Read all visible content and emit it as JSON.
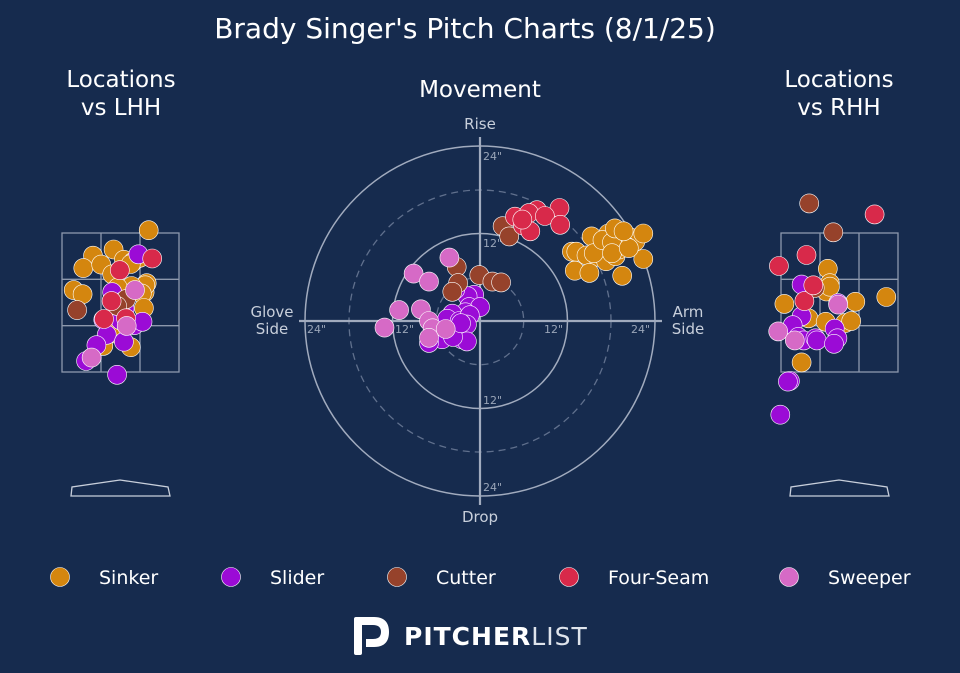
{
  "title": "Brady Singer's Pitch Charts (8/1/25)",
  "panels": {
    "lhh": {
      "title_line1": "Locations",
      "title_line2": "vs LHH"
    },
    "movement": {
      "title": "Movement",
      "rise": "Rise",
      "drop": "Drop",
      "glove_line1": "Glove",
      "glove_line2": "Side",
      "arm_line1": "Arm",
      "arm_line2": "Side",
      "ring_labels": [
        "24\"",
        "12\""
      ]
    },
    "rhh": {
      "title_line1": "Locations",
      "title_line2": "vs RHH"
    }
  },
  "brand": {
    "bold": "PITCHER",
    "light": "LIST"
  },
  "colors": {
    "Sinker": "#d4860f",
    "Slider": "#9b0bd6",
    "Cutter": "#96422b",
    "Four-Seam": "#d8294a",
    "Sweeper": "#d66ac6"
  },
  "chart_data": [
    {
      "type": "scatter",
      "name": "locations_lhh",
      "title": "Locations vs LHH",
      "legend": [
        "Sinker",
        "Slider",
        "Cutter",
        "Four-Seam",
        "Sweeper"
      ],
      "points": [
        {
          "pitch": "Sinker",
          "x": 4.1,
          "y": 10.5
        },
        {
          "pitch": "Sinker",
          "x": -1.0,
          "y": 7.7
        },
        {
          "pitch": "Sinker",
          "x": -4.0,
          "y": 6.8
        },
        {
          "pitch": "Sinker",
          "x": -5.4,
          "y": 5.0
        },
        {
          "pitch": "Sinker",
          "x": -2.8,
          "y": 5.5
        },
        {
          "pitch": "Sinker",
          "x": 0.5,
          "y": 6.2
        },
        {
          "pitch": "Sinker",
          "x": 1.8,
          "y": 5.9
        },
        {
          "pitch": "Sinker",
          "x": 2.8,
          "y": 6.5
        },
        {
          "pitch": "Sinker",
          "x": 1.5,
          "y": 5.6
        },
        {
          "pitch": "Sinker",
          "x": -1.2,
          "y": 4.1
        },
        {
          "pitch": "Sinker",
          "x": 3.5,
          "y": 1.5
        },
        {
          "pitch": "Sinker",
          "x": 3.8,
          "y": 2.8
        },
        {
          "pitch": "Sinker",
          "x": 3.6,
          "y": 2.5
        },
        {
          "pitch": "Sinker",
          "x": 1.6,
          "y": 2.4
        },
        {
          "pitch": "Sinker",
          "x": -6.8,
          "y": 1.8
        },
        {
          "pitch": "Sinker",
          "x": -5.5,
          "y": 1.2
        },
        {
          "pitch": "Sinker",
          "x": -0.4,
          "y": 2.2
        },
        {
          "pitch": "Sinker",
          "x": 3.1,
          "y": 1.3
        },
        {
          "pitch": "Sinker",
          "x": 3.4,
          "y": -0.8
        },
        {
          "pitch": "Sinker",
          "x": 0.4,
          "y": -2.0
        },
        {
          "pitch": "Sinker",
          "x": -0.8,
          "y": -4.5
        },
        {
          "pitch": "Sinker",
          "x": -2.5,
          "y": -6.3
        },
        {
          "pitch": "Sinker",
          "x": 1.5,
          "y": -6.5
        },
        {
          "pitch": "Slider",
          "x": 2.6,
          "y": 7.0
        },
        {
          "pitch": "Slider",
          "x": -1.2,
          "y": 1.5
        },
        {
          "pitch": "Slider",
          "x": -0.3,
          "y": -0.2
        },
        {
          "pitch": "Slider",
          "x": 0.6,
          "y": -0.9
        },
        {
          "pitch": "Slider",
          "x": -0.3,
          "y": -1.3
        },
        {
          "pitch": "Slider",
          "x": -2.5,
          "y": -2.5
        },
        {
          "pitch": "Slider",
          "x": 0.0,
          "y": -2.6
        },
        {
          "pitch": "Slider",
          "x": 2.0,
          "y": -3.3
        },
        {
          "pitch": "Slider",
          "x": 3.2,
          "y": -2.8
        },
        {
          "pitch": "Slider",
          "x": -2.0,
          "y": -4.7
        },
        {
          "pitch": "Slider",
          "x": -3.5,
          "y": -6.2
        },
        {
          "pitch": "Slider",
          "x": 0.5,
          "y": -5.7
        },
        {
          "pitch": "Slider",
          "x": -5.0,
          "y": -8.5
        },
        {
          "pitch": "Slider",
          "x": -0.5,
          "y": -10.5
        },
        {
          "pitch": "Cutter",
          "x": -6.3,
          "y": -1.1
        },
        {
          "pitch": "Cutter",
          "x": 0.4,
          "y": 0.2
        },
        {
          "pitch": "Cutter",
          "x": 0.8,
          "y": 0.5
        },
        {
          "pitch": "Cutter",
          "x": -0.5,
          "y": -0.5
        },
        {
          "pitch": "Four-Seam",
          "x": -0.1,
          "y": 4.7
        },
        {
          "pitch": "Four-Seam",
          "x": 4.6,
          "y": 6.4
        },
        {
          "pitch": "Four-Seam",
          "x": -1.3,
          "y": 0.2
        },
        {
          "pitch": "Four-Seam",
          "x": 0.8,
          "y": -2.3
        },
        {
          "pitch": "Four-Seam",
          "x": -2.4,
          "y": -2.4
        },
        {
          "pitch": "Sweeper",
          "x": 2.1,
          "y": 1.8
        },
        {
          "pitch": "Sweeper",
          "x": 0.9,
          "y": -3.4
        },
        {
          "pitch": "Sweeper",
          "x": -4.2,
          "y": -8.0
        }
      ]
    },
    {
      "type": "scatter",
      "name": "movement",
      "title": "Movement",
      "xlabel_left": "Glove Side",
      "xlabel_right": "Arm Side",
      "ylabel_top": "Rise",
      "ylabel_bottom": "Drop",
      "xlim": [
        -24,
        24
      ],
      "ylim": [
        -24,
        24
      ],
      "rings": [
        6,
        12,
        18,
        24
      ],
      "points": [
        {
          "pitch": "Sinker",
          "x": 12.6,
          "y": 9.5
        },
        {
          "pitch": "Sinker",
          "x": 13.2,
          "y": 9.5
        },
        {
          "pitch": "Sinker",
          "x": 14.6,
          "y": 9.0
        },
        {
          "pitch": "Sinker",
          "x": 16.1,
          "y": 8.8
        },
        {
          "pitch": "Sinker",
          "x": 17.3,
          "y": 8.2
        },
        {
          "pitch": "Sinker",
          "x": 18.6,
          "y": 8.9
        },
        {
          "pitch": "Sinker",
          "x": 19.4,
          "y": 11.0
        },
        {
          "pitch": "Sinker",
          "x": 20.5,
          "y": 11.5
        },
        {
          "pitch": "Sinker",
          "x": 21.3,
          "y": 10.9
        },
        {
          "pitch": "Sinker",
          "x": 22.4,
          "y": 12.0
        },
        {
          "pitch": "Sinker",
          "x": 17.6,
          "y": 12.0
        },
        {
          "pitch": "Sinker",
          "x": 15.3,
          "y": 11.6
        },
        {
          "pitch": "Sinker",
          "x": 15.6,
          "y": 9.3
        },
        {
          "pitch": "Sinker",
          "x": 19.1,
          "y": 9.8
        },
        {
          "pitch": "Sinker",
          "x": 22.4,
          "y": 8.5
        },
        {
          "pitch": "Sinker",
          "x": 20.1,
          "y": 10.2
        },
        {
          "pitch": "Sinker",
          "x": 16.8,
          "y": 11.1
        },
        {
          "pitch": "Sinker",
          "x": 18.1,
          "y": 10.8
        },
        {
          "pitch": "Sinker",
          "x": 18.1,
          "y": 9.3
        },
        {
          "pitch": "Sinker",
          "x": 20.4,
          "y": 10.0
        },
        {
          "pitch": "Sinker",
          "x": 13.0,
          "y": 6.9
        },
        {
          "pitch": "Sinker",
          "x": 15.0,
          "y": 6.6
        },
        {
          "pitch": "Sinker",
          "x": 19.5,
          "y": 6.2
        },
        {
          "pitch": "Sinker",
          "x": 18.5,
          "y": 12.7
        },
        {
          "pitch": "Sinker",
          "x": 19.7,
          "y": 12.3
        },
        {
          "pitch": "Slider",
          "x": -0.8,
          "y": 3.6
        },
        {
          "pitch": "Slider",
          "x": -1.7,
          "y": 3.4
        },
        {
          "pitch": "Slider",
          "x": -3.4,
          "y": 4.3
        },
        {
          "pitch": "Slider",
          "x": -1.5,
          "y": 1.9
        },
        {
          "pitch": "Slider",
          "x": 0.0,
          "y": 1.9
        },
        {
          "pitch": "Slider",
          "x": -2.0,
          "y": 1.2
        },
        {
          "pitch": "Slider",
          "x": -3.8,
          "y": 1.0
        },
        {
          "pitch": "Slider",
          "x": -4.5,
          "y": 0.3
        },
        {
          "pitch": "Slider",
          "x": -2.8,
          "y": 0.0
        },
        {
          "pitch": "Slider",
          "x": -1.4,
          "y": 0.8
        },
        {
          "pitch": "Slider",
          "x": -3.2,
          "y": -1.2
        },
        {
          "pitch": "Slider",
          "x": -2.5,
          "y": -2.5
        },
        {
          "pitch": "Slider",
          "x": -3.0,
          "y": -2.0
        },
        {
          "pitch": "Slider",
          "x": -5.2,
          "y": -2.5
        },
        {
          "pitch": "Slider",
          "x": -7.0,
          "y": -3.0
        },
        {
          "pitch": "Slider",
          "x": -1.8,
          "y": -0.5
        },
        {
          "pitch": "Slider",
          "x": -1.8,
          "y": -2.8
        },
        {
          "pitch": "Slider",
          "x": -3.7,
          "y": -2.2
        },
        {
          "pitch": "Slider",
          "x": -2.6,
          "y": -0.3
        },
        {
          "pitch": "Cutter",
          "x": -3.2,
          "y": 7.4
        },
        {
          "pitch": "Cutter",
          "x": -3.0,
          "y": 5.2
        },
        {
          "pitch": "Cutter",
          "x": -3.8,
          "y": 4.0
        },
        {
          "pitch": "Cutter",
          "x": -0.1,
          "y": 6.3
        },
        {
          "pitch": "Cutter",
          "x": 1.7,
          "y": 5.4
        },
        {
          "pitch": "Cutter",
          "x": 2.9,
          "y": 5.3
        },
        {
          "pitch": "Cutter",
          "x": 3.1,
          "y": 13.0
        },
        {
          "pitch": "Cutter",
          "x": 4.0,
          "y": 11.6
        },
        {
          "pitch": "Four-Seam",
          "x": 7.8,
          "y": 15.2
        },
        {
          "pitch": "Four-Seam",
          "x": 10.9,
          "y": 15.5
        },
        {
          "pitch": "Four-Seam",
          "x": 4.8,
          "y": 14.3
        },
        {
          "pitch": "Four-Seam",
          "x": 6.7,
          "y": 14.8
        },
        {
          "pitch": "Four-Seam",
          "x": 8.9,
          "y": 14.4
        },
        {
          "pitch": "Four-Seam",
          "x": 5.9,
          "y": 13.1
        },
        {
          "pitch": "Four-Seam",
          "x": 6.9,
          "y": 12.3
        },
        {
          "pitch": "Four-Seam",
          "x": 5.8,
          "y": 13.9
        },
        {
          "pitch": "Four-Seam",
          "x": 11.0,
          "y": 13.2
        },
        {
          "pitch": "Sweeper",
          "x": -4.2,
          "y": 8.7
        },
        {
          "pitch": "Sweeper",
          "x": -9.1,
          "y": 6.5
        },
        {
          "pitch": "Sweeper",
          "x": -7.0,
          "y": 5.4
        },
        {
          "pitch": "Sweeper",
          "x": -11.1,
          "y": 1.5
        },
        {
          "pitch": "Sweeper",
          "x": -8.1,
          "y": 1.6
        },
        {
          "pitch": "Sweeper",
          "x": -13.1,
          "y": -0.9
        },
        {
          "pitch": "Sweeper",
          "x": -7.0,
          "y": 0.0
        },
        {
          "pitch": "Sweeper",
          "x": -6.5,
          "y": -1.0
        },
        {
          "pitch": "Sweeper",
          "x": -7.0,
          "y": -2.3
        },
        {
          "pitch": "Sweeper",
          "x": -4.7,
          "y": -1.1
        }
      ]
    },
    {
      "type": "scatter",
      "name": "locations_rhh",
      "title": "Locations vs RHH",
      "points": [
        {
          "pitch": "Sinker",
          "x": -1.7,
          "y": 4.9
        },
        {
          "pitch": "Sinker",
          "x": -1.4,
          "y": 2.8
        },
        {
          "pitch": "Sinker",
          "x": -1.9,
          "y": 1.6
        },
        {
          "pitch": "Sinker",
          "x": -1.4,
          "y": 2.3
        },
        {
          "pitch": "Sinker",
          "x": 2.3,
          "y": 0.1
        },
        {
          "pitch": "Sinker",
          "x": 6.8,
          "y": 0.8
        },
        {
          "pitch": "Sinker",
          "x": -8.0,
          "y": -0.2
        },
        {
          "pitch": "Sinker",
          "x": -4.5,
          "y": -2.3
        },
        {
          "pitch": "Sinker",
          "x": -2.0,
          "y": -2.8
        },
        {
          "pitch": "Sinker",
          "x": 0.8,
          "y": -3.0
        },
        {
          "pitch": "Sinker",
          "x": 1.7,
          "y": -2.7
        },
        {
          "pitch": "Sinker",
          "x": -5.5,
          "y": -8.7
        },
        {
          "pitch": "Slider",
          "x": -5.5,
          "y": 2.6
        },
        {
          "pitch": "Slider",
          "x": -5.5,
          "y": -2.0
        },
        {
          "pitch": "Slider",
          "x": -6.8,
          "y": -3.3
        },
        {
          "pitch": "Slider",
          "x": -6.0,
          "y": -5.0
        },
        {
          "pitch": "Slider",
          "x": -5.2,
          "y": -5.5
        },
        {
          "pitch": "Slider",
          "x": -3.5,
          "y": -5.2
        },
        {
          "pitch": "Slider",
          "x": -3.3,
          "y": -5.5
        },
        {
          "pitch": "Slider",
          "x": -0.7,
          "y": -3.8
        },
        {
          "pitch": "Slider",
          "x": -0.3,
          "y": -5.2
        },
        {
          "pitch": "Slider",
          "x": -0.8,
          "y": -6.0
        },
        {
          "pitch": "Slider",
          "x": -0.2,
          "y": -0.1
        },
        {
          "pitch": "Slider",
          "x": -7.2,
          "y": -11.4
        },
        {
          "pitch": "Slider",
          "x": -7.5,
          "y": -11.5
        },
        {
          "pitch": "Slider",
          "x": -8.6,
          "y": -16.3
        },
        {
          "pitch": "Cutter",
          "x": -4.4,
          "y": 14.4
        },
        {
          "pitch": "Cutter",
          "x": -0.9,
          "y": 10.2
        },
        {
          "pitch": "Cutter",
          "x": -3.6,
          "y": 2.1
        },
        {
          "pitch": "Four-Seam",
          "x": -4.8,
          "y": 6.9
        },
        {
          "pitch": "Four-Seam",
          "x": -8.8,
          "y": 5.3
        },
        {
          "pitch": "Four-Seam",
          "x": 5.1,
          "y": 12.8
        },
        {
          "pitch": "Four-Seam",
          "x": -5.1,
          "y": 0.2
        },
        {
          "pitch": "Four-Seam",
          "x": -3.8,
          "y": 2.5
        },
        {
          "pitch": "Sweeper",
          "x": -8.9,
          "y": -4.2
        },
        {
          "pitch": "Sweeper",
          "x": -6.5,
          "y": -5.5
        },
        {
          "pitch": "Sweeper",
          "x": -0.2,
          "y": -0.3
        }
      ]
    }
  ]
}
